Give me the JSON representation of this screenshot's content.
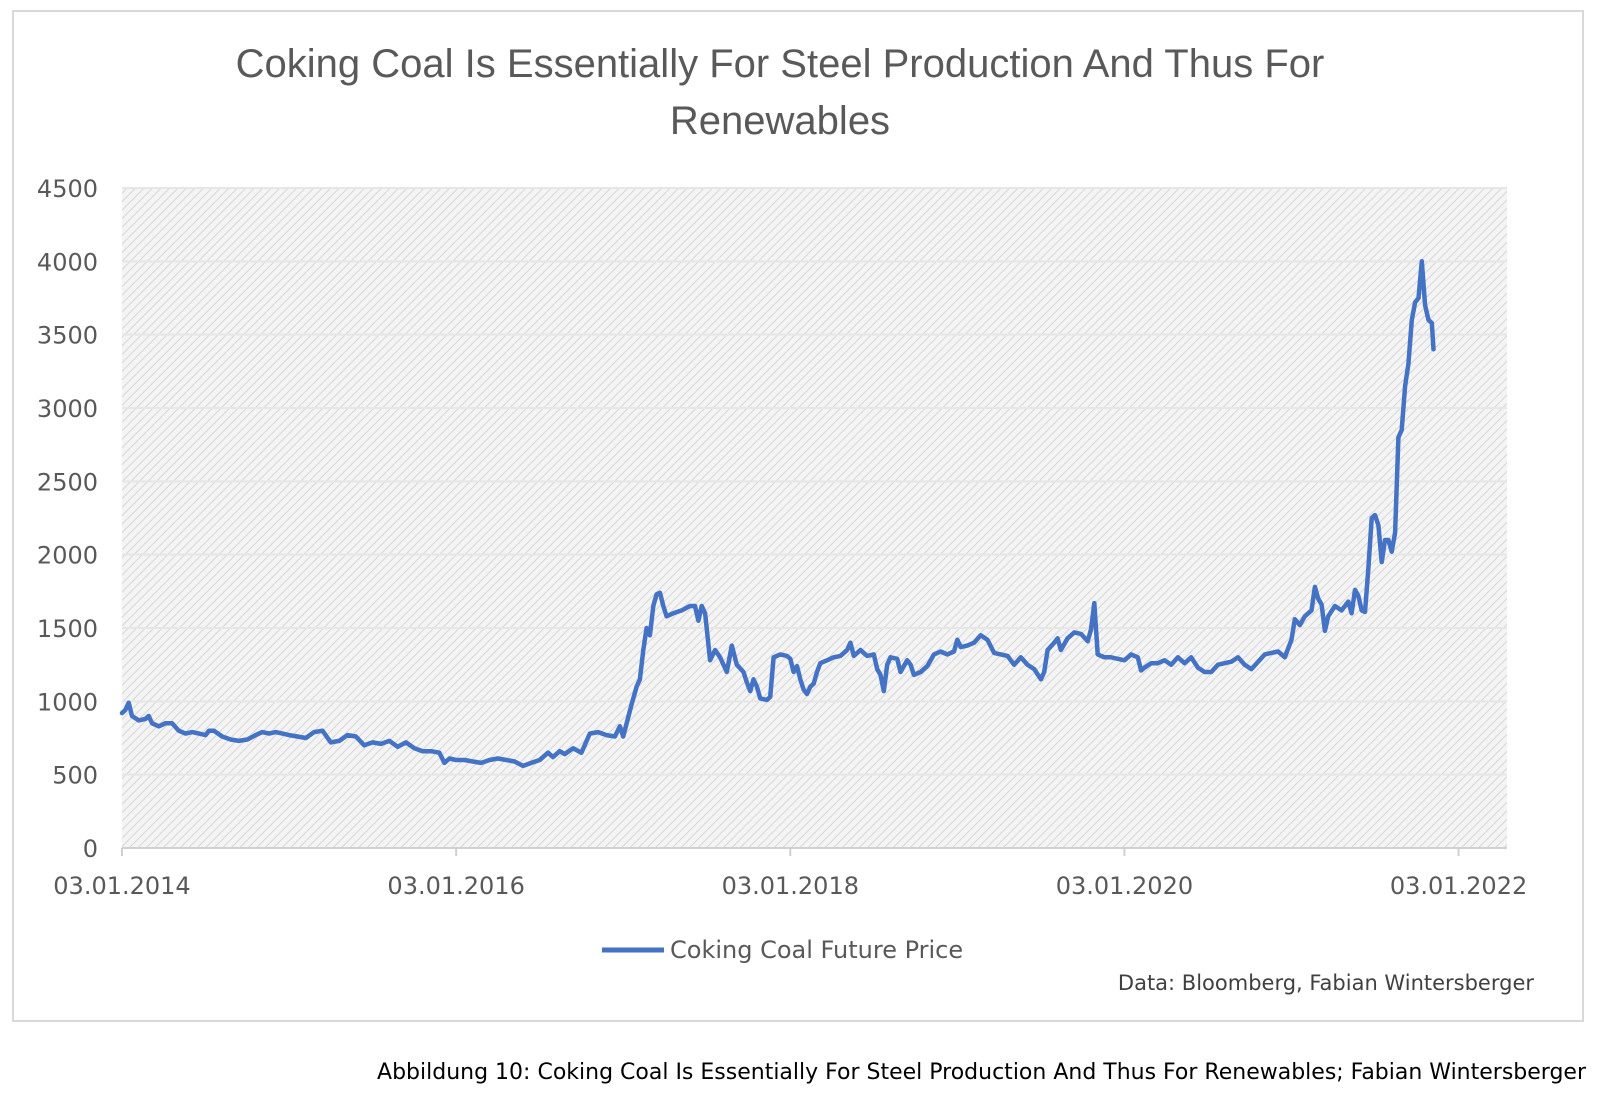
{
  "chart_data": {
    "type": "line",
    "title_lines": [
      "Coking Coal Is Essentially For Steel Production And Thus For",
      "Renewables"
    ],
    "xlabel": "",
    "ylabel": "",
    "ylim": [
      0,
      4500
    ],
    "y_ticks": [
      "0",
      "500",
      "1000",
      "1500",
      "2000",
      "2500",
      "3000",
      "3500",
      "4000",
      "4500"
    ],
    "x_ticks": [
      {
        "label": "03.01.2014",
        "value": 2014.0
      },
      {
        "label": "03.01.2016",
        "value": 2016.0
      },
      {
        "label": "03.01.2018",
        "value": 2018.0
      },
      {
        "label": "03.01.2020",
        "value": 2020.0
      },
      {
        "label": "03.01.2022",
        "value": 2022.0
      }
    ],
    "xlim": [
      2014.0,
      2022.29
    ],
    "grid": true,
    "legend_position": "bottom",
    "plot_background": "hatched",
    "series": [
      {
        "name": "Coking Coal Future Price",
        "color": "#4472c4",
        "points": [
          [
            2014.0,
            920
          ],
          [
            2014.02,
            940
          ],
          [
            2014.04,
            990
          ],
          [
            2014.06,
            900
          ],
          [
            2014.1,
            870
          ],
          [
            2014.14,
            880
          ],
          [
            2014.16,
            900
          ],
          [
            2014.18,
            850
          ],
          [
            2014.22,
            830
          ],
          [
            2014.26,
            850
          ],
          [
            2014.3,
            850
          ],
          [
            2014.34,
            800
          ],
          [
            2014.38,
            780
          ],
          [
            2014.42,
            790
          ],
          [
            2014.46,
            780
          ],
          [
            2014.5,
            770
          ],
          [
            2014.52,
            800
          ],
          [
            2014.55,
            800
          ],
          [
            2014.6,
            760
          ],
          [
            2014.65,
            740
          ],
          [
            2014.7,
            730
          ],
          [
            2014.75,
            740
          ],
          [
            2014.8,
            770
          ],
          [
            2014.84,
            790
          ],
          [
            2014.88,
            780
          ],
          [
            2014.92,
            790
          ],
          [
            2015.0,
            770
          ],
          [
            2015.05,
            760
          ],
          [
            2015.1,
            750
          ],
          [
            2015.15,
            790
          ],
          [
            2015.2,
            800
          ],
          [
            2015.25,
            720
          ],
          [
            2015.3,
            730
          ],
          [
            2015.35,
            770
          ],
          [
            2015.4,
            760
          ],
          [
            2015.45,
            700
          ],
          [
            2015.5,
            720
          ],
          [
            2015.55,
            710
          ],
          [
            2015.6,
            730
          ],
          [
            2015.65,
            690
          ],
          [
            2015.7,
            720
          ],
          [
            2015.75,
            680
          ],
          [
            2015.8,
            660
          ],
          [
            2015.85,
            660
          ],
          [
            2015.9,
            650
          ],
          [
            2015.93,
            580
          ],
          [
            2015.96,
            610
          ],
          [
            2016.0,
            600
          ],
          [
            2016.05,
            600
          ],
          [
            2016.1,
            590
          ],
          [
            2016.15,
            580
          ],
          [
            2016.2,
            600
          ],
          [
            2016.25,
            610
          ],
          [
            2016.3,
            600
          ],
          [
            2016.35,
            590
          ],
          [
            2016.4,
            560
          ],
          [
            2016.45,
            580
          ],
          [
            2016.5,
            600
          ],
          [
            2016.55,
            650
          ],
          [
            2016.58,
            620
          ],
          [
            2016.62,
            660
          ],
          [
            2016.65,
            640
          ],
          [
            2016.7,
            680
          ],
          [
            2016.75,
            650
          ],
          [
            2016.8,
            780
          ],
          [
            2016.85,
            790
          ],
          [
            2016.9,
            770
          ],
          [
            2016.95,
            760
          ],
          [
            2016.98,
            830
          ],
          [
            2017.0,
            760
          ],
          [
            2017.05,
            980
          ],
          [
            2017.08,
            1100
          ],
          [
            2017.1,
            1150
          ],
          [
            2017.12,
            1350
          ],
          [
            2017.14,
            1500
          ],
          [
            2017.16,
            1450
          ],
          [
            2017.18,
            1650
          ],
          [
            2017.2,
            1730
          ],
          [
            2017.22,
            1740
          ],
          [
            2017.24,
            1650
          ],
          [
            2017.26,
            1580
          ],
          [
            2017.3,
            1600
          ],
          [
            2017.35,
            1620
          ],
          [
            2017.4,
            1650
          ],
          [
            2017.43,
            1650
          ],
          [
            2017.45,
            1550
          ],
          [
            2017.47,
            1650
          ],
          [
            2017.49,
            1600
          ],
          [
            2017.52,
            1280
          ],
          [
            2017.55,
            1350
          ],
          [
            2017.58,
            1300
          ],
          [
            2017.62,
            1200
          ],
          [
            2017.65,
            1380
          ],
          [
            2017.68,
            1250
          ],
          [
            2017.72,
            1200
          ],
          [
            2017.74,
            1130
          ],
          [
            2017.76,
            1070
          ],
          [
            2017.78,
            1150
          ],
          [
            2017.8,
            1100
          ],
          [
            2017.82,
            1020
          ],
          [
            2017.86,
            1010
          ],
          [
            2017.88,
            1030
          ],
          [
            2017.9,
            1300
          ],
          [
            2017.94,
            1320
          ],
          [
            2017.98,
            1310
          ],
          [
            2018.0,
            1290
          ],
          [
            2018.02,
            1200
          ],
          [
            2018.04,
            1240
          ],
          [
            2018.06,
            1150
          ],
          [
            2018.08,
            1080
          ],
          [
            2018.1,
            1050
          ],
          [
            2018.12,
            1100
          ],
          [
            2018.14,
            1120
          ],
          [
            2018.16,
            1200
          ],
          [
            2018.18,
            1260
          ],
          [
            2018.22,
            1280
          ],
          [
            2018.26,
            1300
          ],
          [
            2018.3,
            1310
          ],
          [
            2018.34,
            1350
          ],
          [
            2018.36,
            1400
          ],
          [
            2018.38,
            1310
          ],
          [
            2018.42,
            1350
          ],
          [
            2018.46,
            1310
          ],
          [
            2018.5,
            1320
          ],
          [
            2018.52,
            1220
          ],
          [
            2018.54,
            1180
          ],
          [
            2018.56,
            1070
          ],
          [
            2018.58,
            1250
          ],
          [
            2018.6,
            1300
          ],
          [
            2018.64,
            1290
          ],
          [
            2018.66,
            1200
          ],
          [
            2018.7,
            1280
          ],
          [
            2018.72,
            1250
          ],
          [
            2018.74,
            1180
          ],
          [
            2018.78,
            1200
          ],
          [
            2018.82,
            1240
          ],
          [
            2018.86,
            1320
          ],
          [
            2018.9,
            1340
          ],
          [
            2018.94,
            1320
          ],
          [
            2018.98,
            1340
          ],
          [
            2019.0,
            1420
          ],
          [
            2019.02,
            1370
          ],
          [
            2019.06,
            1380
          ],
          [
            2019.1,
            1400
          ],
          [
            2019.14,
            1450
          ],
          [
            2019.18,
            1420
          ],
          [
            2019.22,
            1330
          ],
          [
            2019.26,
            1320
          ],
          [
            2019.3,
            1310
          ],
          [
            2019.34,
            1250
          ],
          [
            2019.38,
            1300
          ],
          [
            2019.42,
            1250
          ],
          [
            2019.46,
            1220
          ],
          [
            2019.5,
            1150
          ],
          [
            2019.52,
            1200
          ],
          [
            2019.54,
            1350
          ],
          [
            2019.58,
            1400
          ],
          [
            2019.6,
            1430
          ],
          [
            2019.62,
            1350
          ],
          [
            2019.66,
            1430
          ],
          [
            2019.7,
            1470
          ],
          [
            2019.74,
            1460
          ],
          [
            2019.78,
            1410
          ],
          [
            2019.8,
            1490
          ],
          [
            2019.82,
            1670
          ],
          [
            2019.84,
            1320
          ],
          [
            2019.88,
            1300
          ],
          [
            2019.92,
            1300
          ],
          [
            2019.96,
            1290
          ],
          [
            2020.0,
            1280
          ],
          [
            2020.04,
            1320
          ],
          [
            2020.08,
            1300
          ],
          [
            2020.1,
            1210
          ],
          [
            2020.12,
            1230
          ],
          [
            2020.16,
            1260
          ],
          [
            2020.2,
            1260
          ],
          [
            2020.24,
            1280
          ],
          [
            2020.28,
            1250
          ],
          [
            2020.32,
            1300
          ],
          [
            2020.36,
            1260
          ],
          [
            2020.4,
            1300
          ],
          [
            2020.44,
            1230
          ],
          [
            2020.48,
            1200
          ],
          [
            2020.52,
            1200
          ],
          [
            2020.56,
            1250
          ],
          [
            2020.6,
            1260
          ],
          [
            2020.64,
            1270
          ],
          [
            2020.68,
            1300
          ],
          [
            2020.72,
            1250
          ],
          [
            2020.76,
            1220
          ],
          [
            2020.8,
            1270
          ],
          [
            2020.84,
            1320
          ],
          [
            2020.88,
            1330
          ],
          [
            2020.92,
            1340
          ],
          [
            2020.96,
            1300
          ],
          [
            2021.0,
            1420
          ],
          [
            2021.02,
            1560
          ],
          [
            2021.05,
            1520
          ],
          [
            2021.08,
            1580
          ],
          [
            2021.12,
            1620
          ],
          [
            2021.14,
            1780
          ],
          [
            2021.16,
            1700
          ],
          [
            2021.18,
            1660
          ],
          [
            2021.2,
            1480
          ],
          [
            2021.22,
            1580
          ],
          [
            2021.26,
            1650
          ],
          [
            2021.3,
            1620
          ],
          [
            2021.34,
            1680
          ],
          [
            2021.36,
            1600
          ],
          [
            2021.38,
            1760
          ],
          [
            2021.4,
            1720
          ],
          [
            2021.42,
            1620
          ],
          [
            2021.44,
            1610
          ],
          [
            2021.46,
            1900
          ],
          [
            2021.48,
            2250
          ],
          [
            2021.5,
            2270
          ],
          [
            2021.52,
            2200
          ],
          [
            2021.54,
            1950
          ],
          [
            2021.56,
            2100
          ],
          [
            2021.58,
            2100
          ],
          [
            2021.6,
            2020
          ],
          [
            2021.62,
            2150
          ],
          [
            2021.64,
            2800
          ],
          [
            2021.66,
            2850
          ],
          [
            2021.68,
            3150
          ],
          [
            2021.7,
            3300
          ],
          [
            2021.72,
            3600
          ],
          [
            2021.74,
            3720
          ],
          [
            2021.76,
            3750
          ],
          [
            2021.78,
            4000
          ],
          [
            2021.8,
            3700
          ],
          [
            2021.82,
            3600
          ],
          [
            2021.84,
            3580
          ],
          [
            2021.85,
            3400
          ]
        ]
      }
    ]
  },
  "source_note": "Data: Bloomberg, Fabian Wintersberger",
  "caption": "Abbildung 10: Coking Coal Is Essentially For Steel Production And Thus For Renewables; Fabian Wintersberger"
}
